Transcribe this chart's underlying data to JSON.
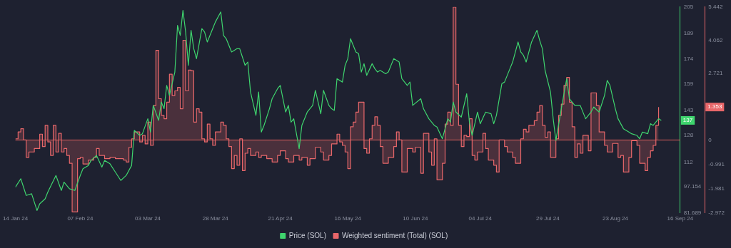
{
  "chart_data": {
    "type": "line",
    "legend": "bottom",
    "grid": false,
    "marker": "none",
    "xlim": [
      "2024-01-14",
      "2024-09-16"
    ],
    "xticks": [
      {
        "value": "2024-01-14",
        "label": "14 Jan 24"
      },
      {
        "value": "2024-02-07",
        "label": "07 Feb 24"
      },
      {
        "value": "2024-03-03",
        "label": "03 Mar 24"
      },
      {
        "value": "2024-03-28",
        "label": "28 Mar 24"
      },
      {
        "value": "2024-04-21",
        "label": "21 Apr 24"
      },
      {
        "value": "2024-05-16",
        "label": "16 May 24"
      },
      {
        "value": "2024-06-10",
        "label": "10 Jun 24"
      },
      {
        "value": "2024-07-04",
        "label": "04 Jul 24"
      },
      {
        "value": "2024-07-29",
        "label": "29 Jul 24"
      },
      {
        "value": "2024-08-23",
        "label": "23 Aug 24"
      },
      {
        "value": "2024-09-16",
        "label": "16 Sep 24"
      }
    ],
    "ylim": [
      81.689,
      205
    ],
    "yticks": [
      81.689,
      97.154,
      112,
      128,
      143,
      159,
      174,
      189,
      205
    ],
    "y2lim": [
      -2.972,
      5.442
    ],
    "y2ticks": [
      -2.972,
      -1.981,
      -0.991,
      0,
      2.721,
      4.062,
      5.442
    ],
    "ref_lines": [
      {
        "axis": "y2",
        "value": 0,
        "color": "#e0625f"
      }
    ],
    "annotations": [
      "137",
      "1.353"
    ],
    "series": [
      {
        "name": "Price (SOL)",
        "color": "#3fd46e",
        "x": [
          "2024-01-14",
          "2024-01-16",
          "2024-01-18",
          "2024-01-20",
          "2024-01-22",
          "2024-01-23",
          "2024-01-25",
          "2024-01-26",
          "2024-01-29",
          "2024-01-31",
          "2024-02-01",
          "2024-02-03",
          "2024-02-05",
          "2024-02-07",
          "2024-02-08",
          "2024-02-10",
          "2024-02-11",
          "2024-02-13",
          "2024-02-15",
          "2024-02-16",
          "2024-02-18",
          "2024-02-20",
          "2024-02-22",
          "2024-02-24",
          "2024-02-26",
          "2024-02-27",
          "2024-02-29",
          "2024-03-01",
          "2024-03-03",
          "2024-03-04",
          "2024-03-05",
          "2024-03-07",
          "2024-03-08",
          "2024-03-09",
          "2024-03-10",
          "2024-03-11",
          "2024-03-13",
          "2024-03-14",
          "2024-03-15",
          "2024-03-16",
          "2024-03-17",
          "2024-03-18",
          "2024-03-19",
          "2024-03-20",
          "2024-03-21",
          "2024-03-23",
          "2024-03-24",
          "2024-03-25",
          "2024-03-27",
          "2024-03-28",
          "2024-03-30",
          "2024-03-31",
          "2024-04-01",
          "2024-04-03",
          "2024-04-05",
          "2024-04-06",
          "2024-04-08",
          "2024-04-09",
          "2024-04-10",
          "2024-04-12",
          "2024-04-13",
          "2024-04-14",
          "2024-04-15",
          "2024-04-17",
          "2024-04-18",
          "2024-04-20",
          "2024-04-21",
          "2024-04-23",
          "2024-04-24",
          "2024-04-25",
          "2024-04-26",
          "2024-04-28",
          "2024-04-29",
          "2024-05-01",
          "2024-05-03",
          "2024-05-04",
          "2024-05-05",
          "2024-05-06",
          "2024-05-07",
          "2024-05-09",
          "2024-05-10",
          "2024-05-11",
          "2024-05-12",
          "2024-05-14",
          "2024-05-15",
          "2024-05-16",
          "2024-05-17",
          "2024-05-19",
          "2024-05-20",
          "2024-05-21",
          "2024-05-22",
          "2024-05-23",
          "2024-05-25",
          "2024-05-26",
          "2024-05-27",
          "2024-05-28",
          "2024-05-30",
          "2024-05-31",
          "2024-06-02",
          "2024-06-04",
          "2024-06-05",
          "2024-06-07",
          "2024-06-08",
          "2024-06-09",
          "2024-06-12",
          "2024-06-13",
          "2024-06-15",
          "2024-06-17",
          "2024-06-18",
          "2024-06-20",
          "2024-06-22",
          "2024-06-23",
          "2024-06-24",
          "2024-06-25",
          "2024-06-27",
          "2024-06-29",
          "2024-06-30",
          "2024-07-01",
          "2024-07-03",
          "2024-07-04",
          "2024-07-06",
          "2024-07-08",
          "2024-07-09",
          "2024-07-10",
          "2024-07-12",
          "2024-07-13",
          "2024-07-15",
          "2024-07-16",
          "2024-07-18",
          "2024-07-19",
          "2024-07-20",
          "2024-07-21",
          "2024-07-23",
          "2024-07-25",
          "2024-07-26",
          "2024-07-27",
          "2024-07-28",
          "2024-07-30",
          "2024-07-31",
          "2024-08-01",
          "2024-08-03",
          "2024-08-05",
          "2024-08-06",
          "2024-08-08",
          "2024-08-10",
          "2024-08-12",
          "2024-08-14",
          "2024-08-15",
          "2024-08-17",
          "2024-08-19",
          "2024-08-20",
          "2024-08-21",
          "2024-08-23",
          "2024-08-24",
          "2024-08-26",
          "2024-08-28",
          "2024-08-29",
          "2024-08-31",
          "2024-09-01",
          "2024-09-02",
          "2024-09-04",
          "2024-09-05",
          "2024-09-06",
          "2024-09-08",
          "2024-09-09"
        ],
        "values": [
          97,
          102,
          92,
          93,
          83,
          87,
          90,
          94,
          104,
          95,
          100,
          96,
          95,
          104,
          108,
          110,
          113,
          116,
          109,
          113,
          111,
          106,
          101,
          104,
          110,
          131,
          128,
          129,
          138,
          130,
          146,
          137,
          148,
          144,
          158,
          152,
          166,
          194,
          188,
          203,
          190,
          170,
          191,
          180,
          174,
          192,
          190,
          184,
          192,
          196,
          202,
          188,
          186,
          178,
          180,
          180,
          170,
          172,
          154,
          140,
          154,
          130,
          134,
          144,
          150,
          156,
          158,
          142,
          146,
          136,
          138,
          120,
          134,
          142,
          146,
          155,
          148,
          141,
          155,
          146,
          144,
          143,
          162,
          160,
          170,
          174,
          186,
          178,
          177,
          166,
          171,
          164,
          171,
          168,
          166,
          167,
          165,
          166,
          174,
          172,
          162,
          158,
          160,
          146,
          150,
          144,
          138,
          134,
          133,
          126,
          138,
          136,
          148,
          142,
          139,
          153,
          136,
          128,
          142,
          135,
          142,
          141,
          135,
          140,
          159,
          160,
          168,
          172,
          184,
          178,
          176,
          172,
          184,
          191,
          185,
          180,
          167,
          154,
          138,
          125,
          144,
          162,
          150,
          146,
          146,
          138,
          142,
          145,
          142,
          152,
          161,
          158,
          144,
          138,
          132,
          130,
          129,
          128,
          126,
          130,
          129,
          135,
          134,
          138,
          137
        ]
      },
      {
        "name": "Weighted sentiment (Total) (SOL)",
        "type": "step",
        "axis": "y2",
        "color": "#e8676a",
        "x": [
          "2024-01-14",
          "2024-01-15",
          "2024-01-16",
          "2024-01-17",
          "2024-01-18",
          "2024-01-19",
          "2024-01-21",
          "2024-01-23",
          "2024-01-24",
          "2024-01-25",
          "2024-01-26",
          "2024-01-27",
          "2024-01-28",
          "2024-01-29",
          "2024-01-30",
          "2024-01-31",
          "2024-02-01",
          "2024-02-02",
          "2024-02-03",
          "2024-02-04",
          "2024-02-06",
          "2024-02-07",
          "2024-02-08",
          "2024-02-10",
          "2024-02-12",
          "2024-02-13",
          "2024-02-14",
          "2024-02-16",
          "2024-02-18",
          "2024-02-20",
          "2024-02-23",
          "2024-02-24",
          "2024-02-25",
          "2024-02-26",
          "2024-02-27",
          "2024-02-29",
          "2024-03-01",
          "2024-03-02",
          "2024-03-03",
          "2024-03-04",
          "2024-03-05",
          "2024-03-06",
          "2024-03-07",
          "2024-03-08",
          "2024-03-09",
          "2024-03-10",
          "2024-03-11",
          "2024-03-12",
          "2024-03-13",
          "2024-03-14",
          "2024-03-15",
          "2024-03-16",
          "2024-03-17",
          "2024-03-18",
          "2024-03-19",
          "2024-03-20",
          "2024-03-21",
          "2024-03-22",
          "2024-03-23",
          "2024-03-24",
          "2024-03-25",
          "2024-03-26",
          "2024-03-27",
          "2024-03-28",
          "2024-03-29",
          "2024-03-30",
          "2024-03-31",
          "2024-04-01",
          "2024-04-02",
          "2024-04-03",
          "2024-04-04",
          "2024-04-05",
          "2024-04-06",
          "2024-04-07",
          "2024-04-08",
          "2024-04-09",
          "2024-04-10",
          "2024-04-12",
          "2024-04-13",
          "2024-04-14",
          "2024-04-16",
          "2024-04-18",
          "2024-04-20",
          "2024-04-21",
          "2024-04-23",
          "2024-04-24",
          "2024-04-26",
          "2024-04-28",
          "2024-04-29",
          "2024-05-01",
          "2024-05-02",
          "2024-05-04",
          "2024-05-06",
          "2024-05-07",
          "2024-05-09",
          "2024-05-10",
          "2024-05-12",
          "2024-05-13",
          "2024-05-14",
          "2024-05-15",
          "2024-05-16",
          "2024-05-17",
          "2024-05-18",
          "2024-05-19",
          "2024-05-20",
          "2024-05-22",
          "2024-05-23",
          "2024-05-24",
          "2024-05-25",
          "2024-05-26",
          "2024-05-27",
          "2024-05-28",
          "2024-05-29",
          "2024-05-31",
          "2024-06-02",
          "2024-06-03",
          "2024-06-04",
          "2024-06-05",
          "2024-06-07",
          "2024-06-09",
          "2024-06-10",
          "2024-06-12",
          "2024-06-13",
          "2024-06-15",
          "2024-06-16",
          "2024-06-17",
          "2024-06-18",
          "2024-06-20",
          "2024-06-21",
          "2024-06-22",
          "2024-06-23",
          "2024-06-24",
          "2024-06-25",
          "2024-06-26",
          "2024-06-27",
          "2024-06-28",
          "2024-06-29",
          "2024-06-30",
          "2024-07-01",
          "2024-07-02",
          "2024-07-03",
          "2024-07-05",
          "2024-07-06",
          "2024-07-07",
          "2024-07-09",
          "2024-07-10",
          "2024-07-11",
          "2024-07-13",
          "2024-07-14",
          "2024-07-16",
          "2024-07-17",
          "2024-07-19",
          "2024-07-20",
          "2024-07-21",
          "2024-07-22",
          "2024-07-24",
          "2024-07-25",
          "2024-07-26",
          "2024-07-27",
          "2024-07-28",
          "2024-07-29",
          "2024-07-30",
          "2024-08-01",
          "2024-08-02",
          "2024-08-03",
          "2024-08-04",
          "2024-08-05",
          "2024-08-06",
          "2024-08-07",
          "2024-08-08",
          "2024-08-09",
          "2024-08-10",
          "2024-08-11",
          "2024-08-13",
          "2024-08-14",
          "2024-08-16",
          "2024-08-17",
          "2024-08-19",
          "2024-08-20",
          "2024-08-22",
          "2024-08-24",
          "2024-08-25",
          "2024-08-26",
          "2024-08-28",
          "2024-08-29",
          "2024-08-31",
          "2024-09-01",
          "2024-09-03",
          "2024-09-04",
          "2024-09-05",
          "2024-09-06",
          "2024-09-07",
          "2024-09-08"
        ],
        "values": [
          0.05,
          0.33,
          0.46,
          0,
          -0.71,
          -0.49,
          -0.35,
          0.24,
          -0.27,
          0.6,
          -0.08,
          -0.63,
          0.6,
          -0.49,
          0.27,
          -0.49,
          -0.35,
          -0.63,
          -0.95,
          -2.94,
          -0.76,
          -0.71,
          -0.98,
          -0.82,
          -0.71,
          -0.35,
          -0.63,
          -0.76,
          -0.71,
          -0.76,
          -0.82,
          -0.9,
          -0.3,
          0.05,
          0.33,
          -0.08,
          0.19,
          -0.16,
          0.73,
          -0.22,
          1.41,
          3.67,
          1.69,
          1.01,
          0.87,
          1.55,
          2.69,
          1.82,
          2.01,
          2.15,
          1.28,
          4.08,
          2.01,
          2.86,
          2.83,
          0.73,
          1.28,
          1.14,
          0.05,
          -0.08,
          0.65,
          0.05,
          -0.22,
          0.33,
          0.33,
          0.73,
          0.6,
          0.05,
          -0.27,
          -1.17,
          -0.63,
          -1.03,
          0.05,
          -1.25,
          -0.54,
          -0.35,
          -0.63,
          -0.49,
          -0.71,
          -0.63,
          -0.76,
          -0.9,
          -0.63,
          -0.44,
          -0.76,
          -0.9,
          -0.63,
          -0.82,
          -0.71,
          -1.03,
          -0.76,
          -0.3,
          -0.49,
          -0.82,
          -0.63,
          -0.16,
          0.24,
          -0.08,
          -0.22,
          -0.49,
          -1.17,
          0.54,
          0.73,
          1.14,
          1.55,
          -0.35,
          -0.54,
          0.05,
          0.6,
          0.95,
          0.6,
          -0.27,
          -0.95,
          -0.71,
          -0.27,
          0.33,
          0,
          -1.31,
          -0.35,
          -0.49,
          -0.3,
          -1.36,
          0.27,
          -0.49,
          -1.03,
          0.05,
          -1.63,
          -0.95,
          0.65,
          1.14,
          0.6,
          5.44,
          2.28,
          0.6,
          -0.27,
          0.19,
          0.14,
          0.87,
          -0.63,
          -0.82,
          -0.49,
          0.27,
          -0.35,
          -0.82,
          -1.03,
          -1.31,
          0,
          -0.27,
          -0.49,
          -0.71,
          -0.95,
          0.05,
          0.44,
          0.33,
          0.6,
          0.79,
          1.14,
          1.41,
          0.6,
          0.11,
          0.33,
          -0.71,
          0.05,
          1.01,
          1.47,
          2.23,
          2.56,
          1.55,
          0.54,
          -0.71,
          -0.16,
          -0.54,
          0.19,
          -0.44,
          1.93,
          1.41,
          0.33,
          -0.22,
          -0.49,
          -0.14,
          -0.71,
          -0.63,
          -1.31,
          -0.71,
          -0.03,
          -0.22,
          -0.95,
          -1.25,
          -0.71,
          -0.44,
          -0.22,
          0.6,
          1.35
        ]
      }
    ]
  }
}
